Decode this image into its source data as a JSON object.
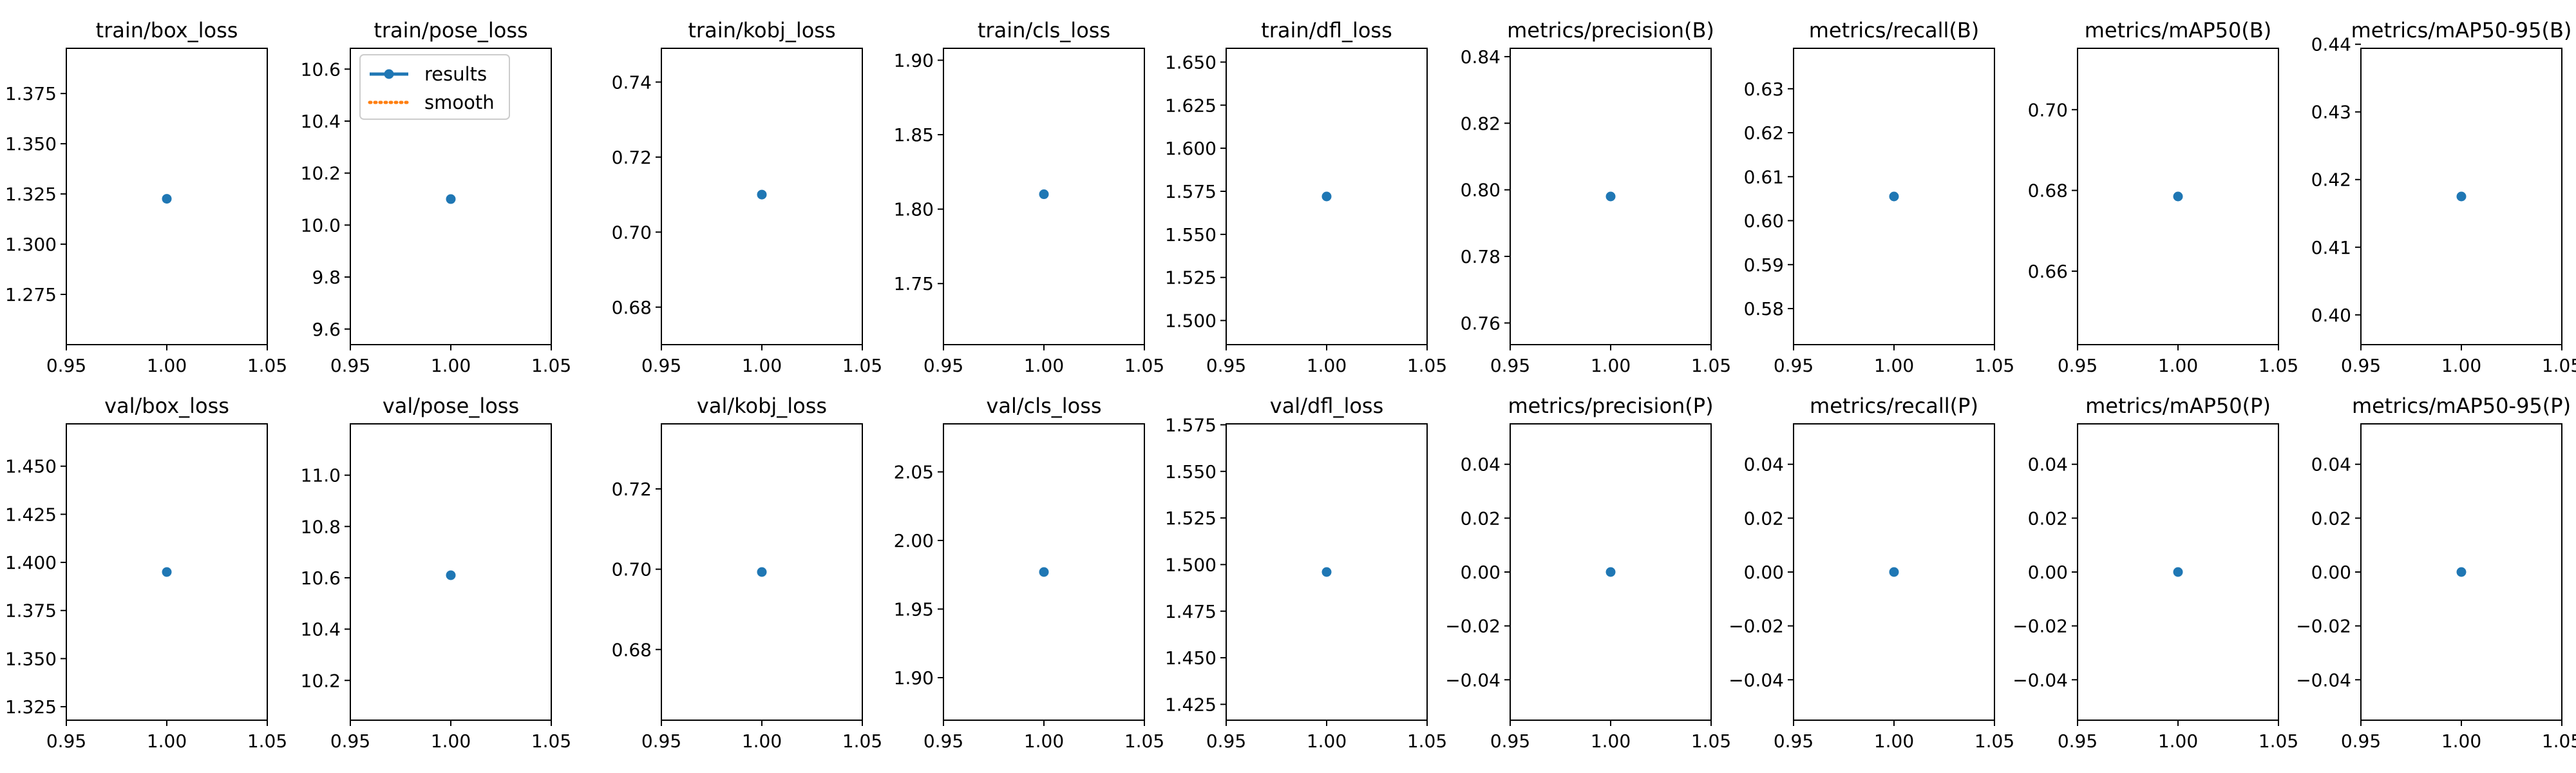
{
  "colors": {
    "results": "#1f77b4",
    "smooth": "#ff7f0e",
    "axes": "#000000"
  },
  "legend": {
    "placement": "top-center",
    "entries": [
      {
        "label": "results",
        "style": "solid-line-with-marker"
      },
      {
        "label": "smooth",
        "style": "dotted-line"
      }
    ]
  },
  "chart_data": [
    {
      "type": "scatter",
      "title": "train/box_loss",
      "x": [
        1.0
      ],
      "y": [
        1.3226
      ],
      "xlim": [
        0.95,
        1.05
      ],
      "ylim": [
        1.25,
        1.3975
      ],
      "xticks": [
        "0.95",
        "1.00",
        "1.05"
      ],
      "yticks": [
        {
          "v": 1.275,
          "label": "1.275"
        },
        {
          "v": 1.3,
          "label": "1.300"
        },
        {
          "v": 1.325,
          "label": "1.325"
        },
        {
          "v": 1.35,
          "label": "1.350"
        },
        {
          "v": 1.375,
          "label": "1.375"
        }
      ],
      "legend": false
    },
    {
      "type": "scatter",
      "title": "train/pose_loss",
      "x": [
        1.0
      ],
      "y": [
        10.1
      ],
      "xlim": [
        0.95,
        1.05
      ],
      "ylim": [
        9.54,
        10.68
      ],
      "xticks": [
        "0.95",
        "1.00",
        "1.05"
      ],
      "yticks": [
        {
          "v": 9.6,
          "label": "9.6"
        },
        {
          "v": 9.8,
          "label": "9.8"
        },
        {
          "v": 10.0,
          "label": "10.0"
        },
        {
          "v": 10.2,
          "label": "10.2"
        },
        {
          "v": 10.4,
          "label": "10.4"
        },
        {
          "v": 10.6,
          "label": "10.6"
        }
      ],
      "legend": true
    },
    {
      "type": "scatter",
      "title": "train/kobj_loss",
      "x": [
        1.0
      ],
      "y": [
        0.71
      ],
      "xlim": [
        0.95,
        1.05
      ],
      "ylim": [
        0.67,
        0.749
      ],
      "xticks": [
        "0.95",
        "1.00",
        "1.05"
      ],
      "yticks": [
        {
          "v": 0.68,
          "label": "0.68"
        },
        {
          "v": 0.7,
          "label": "0.70"
        },
        {
          "v": 0.72,
          "label": "0.72"
        },
        {
          "v": 0.74,
          "label": "0.74"
        }
      ],
      "legend": false
    },
    {
      "type": "scatter",
      "title": "train/cls_loss",
      "x": [
        1.0
      ],
      "y": [
        1.81
      ],
      "xlim": [
        0.95,
        1.05
      ],
      "ylim": [
        1.709,
        1.908
      ],
      "xticks": [
        "0.95",
        "1.00",
        "1.05"
      ],
      "yticks": [
        {
          "v": 1.75,
          "label": "1.75"
        },
        {
          "v": 1.8,
          "label": "1.80"
        },
        {
          "v": 1.85,
          "label": "1.85"
        },
        {
          "v": 1.9,
          "label": "1.90"
        }
      ],
      "legend": false
    },
    {
      "type": "scatter",
      "title": "train/dfl_loss",
      "x": [
        1.0
      ],
      "y": [
        1.572
      ],
      "xlim": [
        0.95,
        1.05
      ],
      "ylim": [
        1.486,
        1.658
      ],
      "xticks": [
        "0.95",
        "1.00",
        "1.05"
      ],
      "yticks": [
        {
          "v": 1.5,
          "label": "1.500"
        },
        {
          "v": 1.525,
          "label": "1.525"
        },
        {
          "v": 1.55,
          "label": "1.550"
        },
        {
          "v": 1.575,
          "label": "1.575"
        },
        {
          "v": 1.6,
          "label": "1.600"
        },
        {
          "v": 1.625,
          "label": "1.625"
        },
        {
          "v": 1.65,
          "label": "1.650"
        }
      ],
      "legend": false
    },
    {
      "type": "scatter",
      "title": "metrics/precision(B)",
      "x": [
        1.0
      ],
      "y": [
        0.798
      ],
      "xlim": [
        0.95,
        1.05
      ],
      "ylim": [
        0.7535,
        0.8425
      ],
      "xticks": [
        "0.95",
        "1.00",
        "1.05"
      ],
      "yticks": [
        {
          "v": 0.76,
          "label": "0.76"
        },
        {
          "v": 0.78,
          "label": "0.78"
        },
        {
          "v": 0.8,
          "label": "0.80"
        },
        {
          "v": 0.82,
          "label": "0.82"
        },
        {
          "v": 0.84,
          "label": "0.84"
        }
      ],
      "legend": false
    },
    {
      "type": "scatter",
      "title": "metrics/recall(B)",
      "x": [
        1.0
      ],
      "y": [
        0.6055
      ],
      "xlim": [
        0.95,
        1.05
      ],
      "ylim": [
        0.5718,
        0.6392
      ],
      "xticks": [
        "0.95",
        "1.00",
        "1.05"
      ],
      "yticks": [
        {
          "v": 0.58,
          "label": "0.58"
        },
        {
          "v": 0.59,
          "label": "0.59"
        },
        {
          "v": 0.6,
          "label": "0.60"
        },
        {
          "v": 0.61,
          "label": "0.61"
        },
        {
          "v": 0.62,
          "label": "0.62"
        },
        {
          "v": 0.63,
          "label": "0.63"
        }
      ],
      "legend": false
    },
    {
      "type": "scatter",
      "title": "metrics/mAP50(B)",
      "x": [
        1.0
      ],
      "y": [
        0.6785
      ],
      "xlim": [
        0.95,
        1.05
      ],
      "ylim": [
        0.6418,
        0.7152
      ],
      "xticks": [
        "0.95",
        "1.00",
        "1.05"
      ],
      "yticks": [
        {
          "v": 0.66,
          "label": "0.66"
        },
        {
          "v": 0.68,
          "label": "0.68"
        },
        {
          "v": 0.7,
          "label": "0.70"
        }
      ],
      "legend": false
    },
    {
      "type": "scatter",
      "title": "metrics/mAP50-95(B)",
      "x": [
        1.0
      ],
      "y": [
        0.4175
      ],
      "xlim": [
        0.95,
        1.05
      ],
      "ylim": [
        0.3956,
        0.4394
      ],
      "xticks": [
        "0.95",
        "1.00",
        "1.05"
      ],
      "yticks": [
        {
          "v": 0.4,
          "label": "0.40"
        },
        {
          "v": 0.41,
          "label": "0.41"
        },
        {
          "v": 0.42,
          "label": "0.42"
        },
        {
          "v": 0.43,
          "label": "0.43"
        },
        {
          "v": 0.44,
          "label": "0.44"
        }
      ],
      "legend": false
    },
    {
      "type": "scatter",
      "title": "val/box_loss",
      "x": [
        1.0
      ],
      "y": [
        1.395
      ],
      "xlim": [
        0.95,
        1.05
      ],
      "ylim": [
        1.318,
        1.472
      ],
      "xticks": [
        "0.95",
        "1.00",
        "1.05"
      ],
      "yticks": [
        {
          "v": 1.325,
          "label": "1.325"
        },
        {
          "v": 1.35,
          "label": "1.350"
        },
        {
          "v": 1.375,
          "label": "1.375"
        },
        {
          "v": 1.4,
          "label": "1.400"
        },
        {
          "v": 1.425,
          "label": "1.425"
        },
        {
          "v": 1.45,
          "label": "1.450"
        }
      ],
      "legend": false
    },
    {
      "type": "scatter",
      "title": "val/pose_loss",
      "x": [
        1.0
      ],
      "y": [
        10.61
      ],
      "xlim": [
        0.95,
        1.05
      ],
      "ylim": [
        10.045,
        11.2
      ],
      "xticks": [
        "0.95",
        "1.00",
        "1.05"
      ],
      "yticks": [
        {
          "v": 10.2,
          "label": "10.2"
        },
        {
          "v": 10.4,
          "label": "10.4"
        },
        {
          "v": 10.6,
          "label": "10.6"
        },
        {
          "v": 10.8,
          "label": "10.8"
        },
        {
          "v": 11.0,
          "label": "11.0"
        }
      ],
      "legend": false
    },
    {
      "type": "scatter",
      "title": "val/kobj_loss",
      "x": [
        1.0
      ],
      "y": [
        0.6993
      ],
      "xlim": [
        0.95,
        1.05
      ],
      "ylim": [
        0.6624,
        0.7362
      ],
      "xticks": [
        "0.95",
        "1.00",
        "1.05"
      ],
      "yticks": [
        {
          "v": 0.68,
          "label": "0.68"
        },
        {
          "v": 0.7,
          "label": "0.70"
        },
        {
          "v": 0.72,
          "label": "0.72"
        }
      ],
      "legend": false
    },
    {
      "type": "scatter",
      "title": "val/cls_loss",
      "x": [
        1.0
      ],
      "y": [
        1.977
      ],
      "xlim": [
        0.95,
        1.05
      ],
      "ylim": [
        1.869,
        2.085
      ],
      "xticks": [
        "0.95",
        "1.00",
        "1.05"
      ],
      "yticks": [
        {
          "v": 1.9,
          "label": "1.90"
        },
        {
          "v": 1.95,
          "label": "1.95"
        },
        {
          "v": 2.0,
          "label": "2.00"
        },
        {
          "v": 2.05,
          "label": "2.05"
        }
      ],
      "legend": false
    },
    {
      "type": "scatter",
      "title": "val/dfl_loss",
      "x": [
        1.0
      ],
      "y": [
        1.496
      ],
      "xlim": [
        0.95,
        1.05
      ],
      "ylim": [
        1.4165,
        1.5755
      ],
      "xticks": [
        "0.95",
        "1.00",
        "1.05"
      ],
      "yticks": [
        {
          "v": 1.425,
          "label": "1.425"
        },
        {
          "v": 1.45,
          "label": "1.450"
        },
        {
          "v": 1.475,
          "label": "1.475"
        },
        {
          "v": 1.5,
          "label": "1.500"
        },
        {
          "v": 1.525,
          "label": "1.525"
        },
        {
          "v": 1.55,
          "label": "1.550"
        },
        {
          "v": 1.575,
          "label": "1.575"
        }
      ],
      "legend": false
    },
    {
      "type": "scatter",
      "title": "metrics/precision(P)",
      "x": [
        1.0
      ],
      "y": [
        0.0
      ],
      "xlim": [
        0.95,
        1.05
      ],
      "ylim": [
        -0.055,
        0.055
      ],
      "xticks": [
        "0.95",
        "1.00",
        "1.05"
      ],
      "yticks": [
        {
          "v": -0.04,
          "label": "−0.04"
        },
        {
          "v": -0.02,
          "label": "−0.02"
        },
        {
          "v": 0.0,
          "label": "0.00"
        },
        {
          "v": 0.02,
          "label": "0.02"
        },
        {
          "v": 0.04,
          "label": "0.04"
        }
      ],
      "legend": false
    },
    {
      "type": "scatter",
      "title": "metrics/recall(P)",
      "x": [
        1.0
      ],
      "y": [
        0.0
      ],
      "xlim": [
        0.95,
        1.05
      ],
      "ylim": [
        -0.055,
        0.055
      ],
      "xticks": [
        "0.95",
        "1.00",
        "1.05"
      ],
      "yticks": [
        {
          "v": -0.04,
          "label": "−0.04"
        },
        {
          "v": -0.02,
          "label": "−0.02"
        },
        {
          "v": 0.0,
          "label": "0.00"
        },
        {
          "v": 0.02,
          "label": "0.02"
        },
        {
          "v": 0.04,
          "label": "0.04"
        }
      ],
      "legend": false
    },
    {
      "type": "scatter",
      "title": "metrics/mAP50(P)",
      "x": [
        1.0
      ],
      "y": [
        0.0
      ],
      "xlim": [
        0.95,
        1.05
      ],
      "ylim": [
        -0.055,
        0.055
      ],
      "xticks": [
        "0.95",
        "1.00",
        "1.05"
      ],
      "yticks": [
        {
          "v": -0.04,
          "label": "−0.04"
        },
        {
          "v": -0.02,
          "label": "−0.02"
        },
        {
          "v": 0.0,
          "label": "0.00"
        },
        {
          "v": 0.02,
          "label": "0.02"
        },
        {
          "v": 0.04,
          "label": "0.04"
        }
      ],
      "legend": false
    },
    {
      "type": "scatter",
      "title": "metrics/mAP50-95(P)",
      "x": [
        1.0
      ],
      "y": [
        0.0
      ],
      "xlim": [
        0.95,
        1.05
      ],
      "ylim": [
        -0.055,
        0.055
      ],
      "xticks": [
        "0.95",
        "1.00",
        "1.05"
      ],
      "yticks": [
        {
          "v": -0.04,
          "label": "−0.04"
        },
        {
          "v": -0.02,
          "label": "−0.02"
        },
        {
          "v": 0.0,
          "label": "0.00"
        },
        {
          "v": 0.02,
          "label": "0.02"
        },
        {
          "v": 0.04,
          "label": "0.04"
        }
      ],
      "legend": false
    }
  ]
}
